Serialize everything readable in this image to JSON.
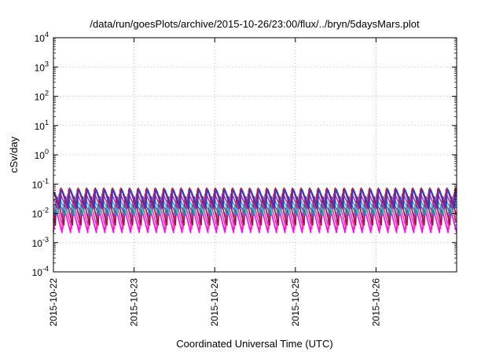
{
  "chart_data": {
    "type": "line",
    "title": "/data/run/goesPlots/archive/2015-10-26/23:00/flux/../bryn/5daysMars.plot",
    "xlabel": "Coordinated Universal Time (UTC)",
    "ylabel": "cSv/day",
    "y_scale": "log",
    "ylim": [
      0.0001,
      10000
    ],
    "xlim": [
      "2015-10-22",
      "2015-10-27"
    ],
    "grid": true,
    "y_ticks": [
      {
        "base": "10",
        "exp": "-4",
        "value": 0.0001
      },
      {
        "base": "10",
        "exp": "-3",
        "value": 0.001
      },
      {
        "base": "10",
        "exp": "-2",
        "value": 0.01
      },
      {
        "base": "10",
        "exp": "-1",
        "value": 0.1
      },
      {
        "base": "10",
        "exp": "0",
        "value": 1
      },
      {
        "base": "10",
        "exp": "1",
        "value": 10
      },
      {
        "base": "10",
        "exp": "2",
        "value": 100
      },
      {
        "base": "10",
        "exp": "3",
        "value": 1000
      },
      {
        "base": "10",
        "exp": "4",
        "value": 10000
      }
    ],
    "x_ticks": [
      "2015-10-22",
      "2015-10-23",
      "2015-10-24",
      "2015-10-25",
      "2015-10-26"
    ],
    "cycles_per_day": 9.4,
    "series": [
      {
        "color": "#ff00ff",
        "peak": 0.022,
        "trough": 0.0022
      },
      {
        "color": "#ff3a9a",
        "peak": 0.03,
        "trough": 0.003
      },
      {
        "color": "#8b1a4a",
        "peak": 0.045,
        "trough": 0.004
      },
      {
        "color": "#00a0a0",
        "peak": 0.03,
        "trough": 0.0085
      },
      {
        "color": "#20c8c8",
        "peak": 0.04,
        "trough": 0.011
      },
      {
        "color": "#a03cc8",
        "peak": 0.055,
        "trough": 0.014
      },
      {
        "color": "#cc1030",
        "peak": 0.085,
        "trough": 0.015
      },
      {
        "color": "#2040e0",
        "peak": 0.075,
        "trough": 0.016
      }
    ]
  }
}
